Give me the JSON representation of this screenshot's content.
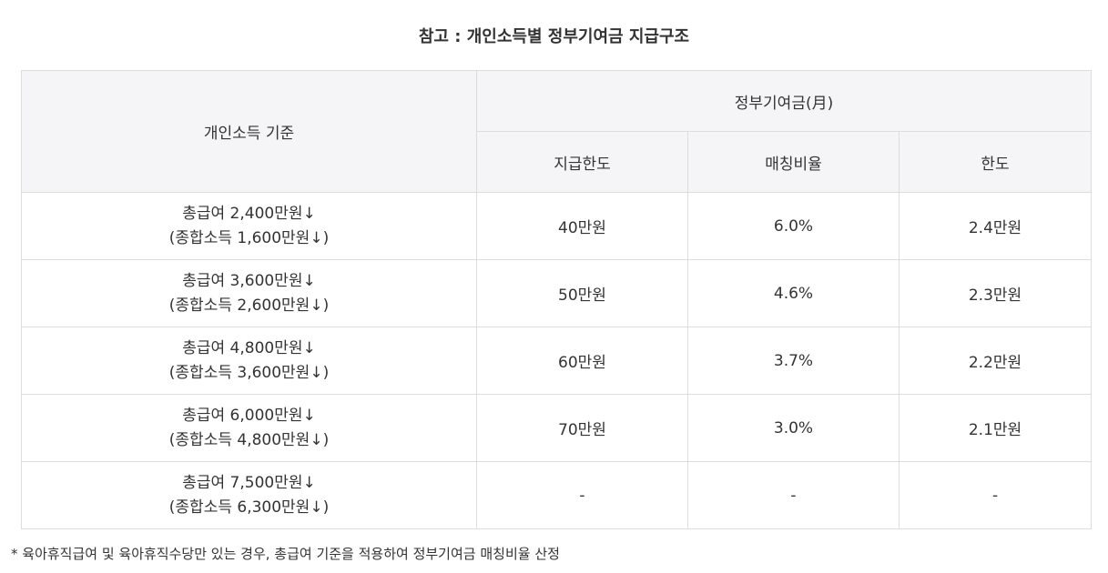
{
  "title": "참고 : 개인소득별 정부기여금 지급구조",
  "header": {
    "criteria": "개인소득 기준",
    "gov_contribution": "정부기여금(月)",
    "limit_payment": "지급한도",
    "matching_ratio": "매칭비율",
    "limit": "한도"
  },
  "rows": [
    {
      "line1": "총급여 2,400만원↓",
      "line2": "(종합소득 1,600만원↓)",
      "limit_payment": "40만원",
      "ratio": "6.0%",
      "limit": "2.4만원"
    },
    {
      "line1": "총급여 3,600만원↓",
      "line2": "(종합소득 2,600만원↓)",
      "limit_payment": "50만원",
      "ratio": "4.6%",
      "limit": "2.3만원"
    },
    {
      "line1": "총급여 4,800만원↓",
      "line2": "(종합소득 3,600만원↓)",
      "limit_payment": "60만원",
      "ratio": "3.7%",
      "limit": "2.2만원"
    },
    {
      "line1": "총급여 6,000만원↓",
      "line2": "(종합소득 4,800만원↓)",
      "limit_payment": "70만원",
      "ratio": "3.0%",
      "limit": "2.1만원"
    },
    {
      "line1": "총급여 7,500만원↓",
      "line2": "(종합소득 6,300만원↓)",
      "limit_payment": "-",
      "ratio": "-",
      "limit": "-"
    }
  ],
  "footnote": "* 육아휴직급여 및 육아휴직수당만 있는 경우, 총급여 기준을 적용하여 정부기여금 매칭비율 산정"
}
